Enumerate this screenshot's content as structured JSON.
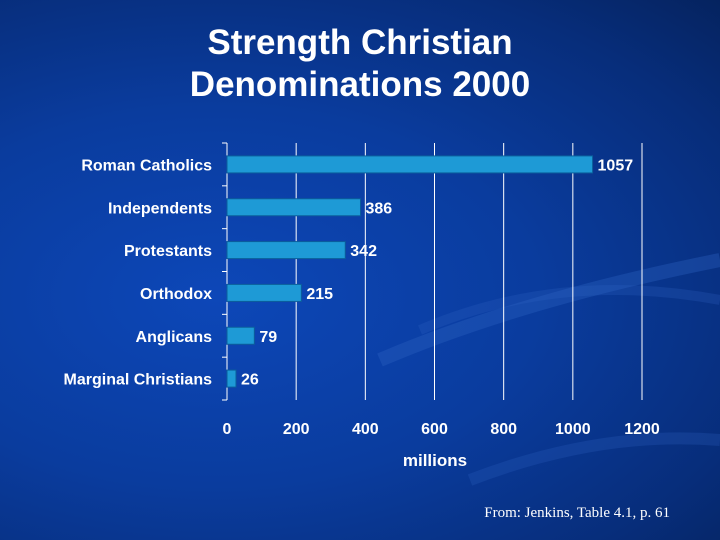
{
  "slide": {
    "title_line1": "Strength Christian",
    "title_line2": "Denominations 2000",
    "source": "From: Jenkins, Table 4.1, p. 61"
  },
  "colors": {
    "background": "#0a3c9e",
    "bar_fill": "#1e9ad6",
    "bar_edge": "#0b5f9c",
    "text": "#ffffff"
  },
  "chart_data": {
    "type": "bar",
    "orientation": "horizontal",
    "categories": [
      "Roman Catholics",
      "Independents",
      "Protestants",
      "Orthodox",
      "Anglicans",
      "Marginal Christians"
    ],
    "values": [
      1057,
      386,
      342,
      215,
      79,
      26
    ],
    "data_labels": [
      "1057",
      "386",
      "342",
      "215",
      "79",
      "26"
    ],
    "xlabel": "millions",
    "ylabel": "",
    "xlim": [
      0,
      1200
    ],
    "xticks": [
      0,
      200,
      400,
      600,
      800,
      1000,
      1200
    ],
    "xtick_labels": [
      "0",
      "200",
      "400",
      "600",
      "800",
      "1000",
      "1200"
    ],
    "grid": "vertical",
    "legend": "none"
  }
}
